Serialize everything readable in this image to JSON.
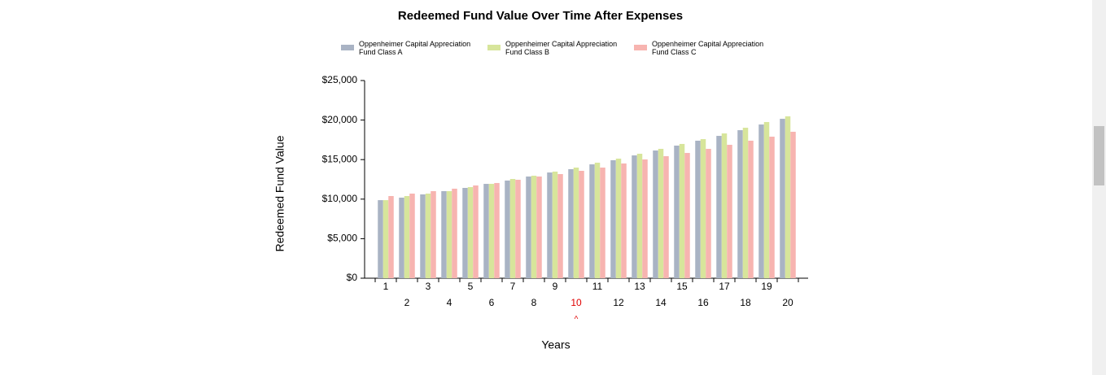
{
  "chart_data": {
    "type": "bar",
    "title": "Redeemed Fund Value Over Time After Expenses",
    "x_label": "Years",
    "y_label": "Redeemed Fund Value",
    "categories": [
      "1",
      "2",
      "3",
      "4",
      "5",
      "6",
      "7",
      "8",
      "9",
      "10",
      "11",
      "12",
      "13",
      "14",
      "15",
      "16",
      "17",
      "18",
      "19",
      "20"
    ],
    "series": [
      {
        "name": "Oppenheimer Capital Appreciation Fund Class A",
        "color": "#a9b3c4",
        "values": [
          9870,
          10190,
          10600,
          11010,
          11420,
          11930,
          12350,
          12860,
          13370,
          13790,
          14400,
          14920,
          15530,
          16150,
          16770,
          17390,
          18000,
          18720,
          19440,
          20160
        ]
      },
      {
        "name": "Oppenheimer Capital Appreciation Fund Class B",
        "color": "#d7e59b",
        "values": [
          9870,
          10390,
          10700,
          11010,
          11520,
          11930,
          12550,
          12960,
          13480,
          13990,
          14610,
          15120,
          15740,
          16360,
          16980,
          17590,
          18310,
          19030,
          19750,
          20470
        ]
      },
      {
        "name": "Oppenheimer Capital Appreciation Fund Class C",
        "color": "#f7b4b0",
        "values": [
          10390,
          10700,
          11010,
          11320,
          11730,
          12040,
          12450,
          12860,
          13170,
          13580,
          13990,
          14510,
          15020,
          15430,
          15840,
          16360,
          16870,
          17390,
          17900,
          18520
        ]
      }
    ],
    "ylim": [
      0,
      25000
    ],
    "yticks": [
      {
        "value": 0,
        "label": "$0"
      },
      {
        "value": 5000,
        "label": "$5,000"
      },
      {
        "value": 10000,
        "label": "$10,000"
      },
      {
        "value": 15000,
        "label": "$15,000"
      },
      {
        "value": 20000,
        "label": "$20,000"
      },
      {
        "value": 25000,
        "label": "$25,000"
      }
    ],
    "grid": false,
    "legend": "top",
    "highlight": {
      "index": 9,
      "marker": "^",
      "color": "#e00000"
    }
  }
}
